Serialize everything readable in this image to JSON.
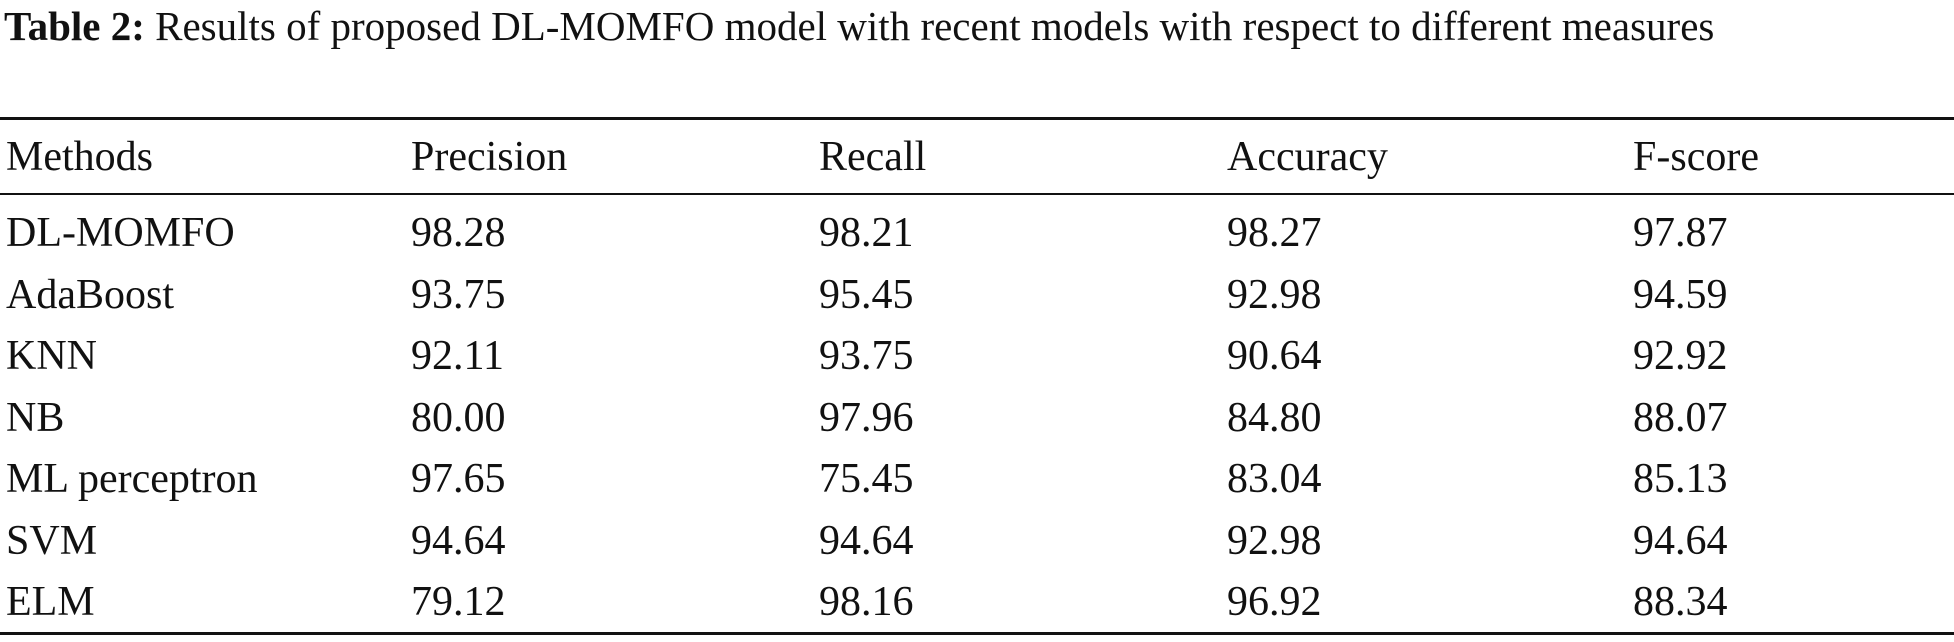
{
  "caption": {
    "label": "Table 2:",
    "text": "Results of proposed DL-MOMFO model with recent models with respect to different measures"
  },
  "table": {
    "header": [
      "Methods",
      "Precision",
      "Recall",
      "Accuracy",
      "F-score"
    ],
    "rows": [
      [
        "DL-MOMFO",
        "98.28",
        "98.21",
        "98.27",
        "97.87"
      ],
      [
        "AdaBoost",
        "93.75",
        "95.45",
        "92.98",
        "94.59"
      ],
      [
        "KNN",
        "92.11",
        "93.75",
        "90.64",
        "92.92"
      ],
      [
        "NB",
        "80.00",
        "97.96",
        "84.80",
        "88.07"
      ],
      [
        "ML perceptron",
        "97.65",
        "75.45",
        "83.04",
        "85.13"
      ],
      [
        "SVM",
        "94.64",
        "94.64",
        "92.98",
        "94.64"
      ],
      [
        "ELM",
        "79.12",
        "98.16",
        "96.92",
        "88.34"
      ]
    ]
  }
}
